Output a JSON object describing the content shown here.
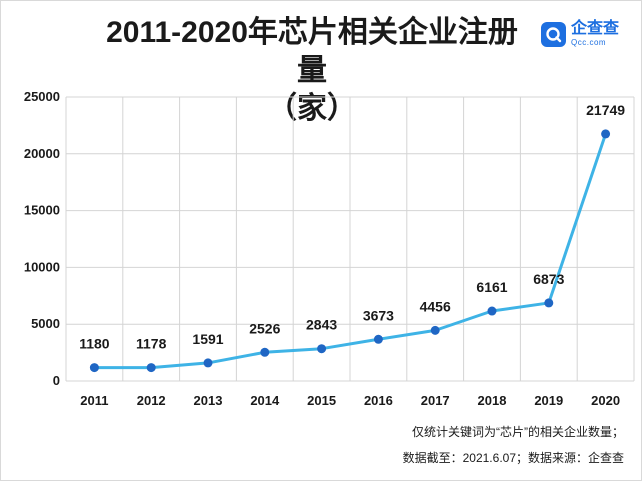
{
  "title_line1": "2011-2020年芯片相关企业注册量",
  "title_line2": "（家）",
  "logo": {
    "name": "企查查",
    "sub": "Qcc.com",
    "icon": "qcc-logo-icon",
    "color": "#1d6fe0"
  },
  "notes": {
    "line1": "仅统计关键词为“芯片”的相关企业数量；",
    "line2": "数据截至：2021.6.07；数据来源：企查查"
  },
  "chart_data": {
    "type": "line",
    "categories": [
      "2011",
      "2012",
      "2013",
      "2014",
      "2015",
      "2016",
      "2017",
      "2018",
      "2019",
      "2020"
    ],
    "values": [
      1180,
      1178,
      1591,
      2526,
      2843,
      3673,
      4456,
      6161,
      6873,
      21749
    ],
    "ylim": [
      0,
      25000
    ],
    "yticks": [
      0,
      5000,
      10000,
      15000,
      20000,
      25000
    ],
    "grid": true,
    "line_color": "#3eb3e6",
    "marker_color": "#1f66c4"
  }
}
